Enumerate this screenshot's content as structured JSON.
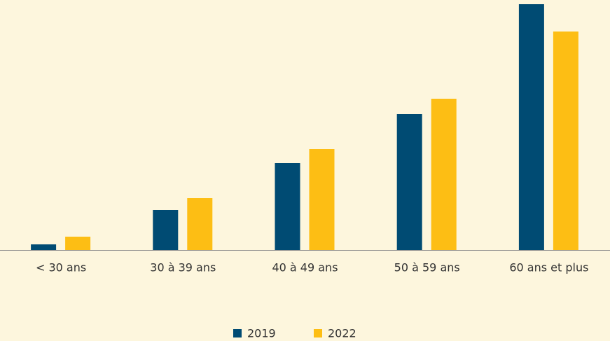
{
  "chart_data": {
    "type": "bar",
    "categories": [
      "< 30 ans",
      "30 à 39 ans",
      "40 à 49 ans",
      "50 à 59 ans",
      "60 ans et plus"
    ],
    "series": [
      {
        "name": "2019",
        "color": "#004b73",
        "values": [
          8,
          57,
          124,
          194,
          351
        ]
      },
      {
        "name": "2022",
        "color": "#fdbe14",
        "values": [
          19,
          74,
          144,
          216,
          312
        ]
      }
    ],
    "ylim": [
      0,
      351
    ],
    "grid": false
  }
}
